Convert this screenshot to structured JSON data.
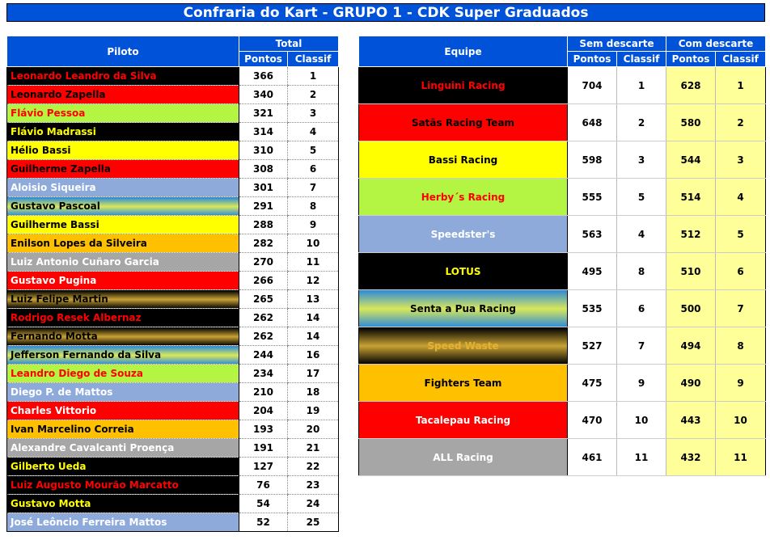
{
  "title": "Confraria do Kart - GRUPO 1 - CDK Super Graduados",
  "left": {
    "h_piloto": "Piloto",
    "h_total": "Total",
    "h_pontos": "Pontos",
    "h_classif": "Classif",
    "rows": [
      {
        "name": "Leonardo Leandro da Silva",
        "pontos": "366",
        "classif": "1",
        "bg": "black",
        "fg": "red"
      },
      {
        "name": "Leonardo Zapella",
        "pontos": "340",
        "classif": "2",
        "bg": "red",
        "fg": "black"
      },
      {
        "name": "Flávio Pessoa",
        "pontos": "321",
        "classif": "3",
        "bg": "lime",
        "fg": "red"
      },
      {
        "name": "Flávio Madrassi",
        "pontos": "314",
        "classif": "4",
        "bg": "black",
        "fg": "yellow"
      },
      {
        "name": "Hélio Bassi",
        "pontos": "310",
        "classif": "5",
        "bg": "yellow",
        "fg": "black"
      },
      {
        "name": "Guilherme Zapella",
        "pontos": "308",
        "classif": "6",
        "bg": "red",
        "fg": "black"
      },
      {
        "name": "Aloisio Siqueira",
        "pontos": "301",
        "classif": "7",
        "bg": "blue",
        "fg": "white"
      },
      {
        "name": "Gustavo Pascoal",
        "pontos": "291",
        "classif": "8",
        "bg": "senta",
        "fg": "black"
      },
      {
        "name": "Guilherme Bassi",
        "pontos": "288",
        "classif": "9",
        "bg": "yellow",
        "fg": "black"
      },
      {
        "name": "Enilson Lopes da Silveira",
        "pontos": "282",
        "classif": "10",
        "bg": "orange",
        "fg": "black"
      },
      {
        "name": "Luiz Antonio Cuñaro Garcia",
        "pontos": "270",
        "classif": "11",
        "bg": "gray",
        "fg": "white"
      },
      {
        "name": "Gustavo Pugina",
        "pontos": "266",
        "classif": "12",
        "bg": "red",
        "fg": "white"
      },
      {
        "name": "Luiz Felipe Martin",
        "pontos": "265",
        "classif": "13",
        "bg": "speed",
        "fg": "black"
      },
      {
        "name": "Rodrigo Resek Albernaz",
        "pontos": "262",
        "classif": "14",
        "bg": "black",
        "fg": "red"
      },
      {
        "name": "Fernando Motta",
        "pontos": "262",
        "classif": "14",
        "bg": "speed",
        "fg": "black"
      },
      {
        "name": "Jefferson Fernando da Silva",
        "pontos": "244",
        "classif": "16",
        "bg": "senta",
        "fg": "black"
      },
      {
        "name": "Leandro Diego de Souza",
        "pontos": "234",
        "classif": "17",
        "bg": "lime",
        "fg": "red"
      },
      {
        "name": "Diego P. de Mattos",
        "pontos": "210",
        "classif": "18",
        "bg": "blue",
        "fg": "white"
      },
      {
        "name": "Charles Vittorio",
        "pontos": "204",
        "classif": "19",
        "bg": "red",
        "fg": "white"
      },
      {
        "name": "Ivan Marcelino Correia",
        "pontos": "193",
        "classif": "20",
        "bg": "orange",
        "fg": "black"
      },
      {
        "name": "Alexandre Cavalcanti Proença",
        "pontos": "191",
        "classif": "21",
        "bg": "gray",
        "fg": "white"
      },
      {
        "name": "Gilberto Ueda",
        "pontos": "127",
        "classif": "22",
        "bg": "black",
        "fg": "yellow"
      },
      {
        "name": "Luiz Augusto Mourão Marcatto",
        "pontos": "76",
        "classif": "23",
        "bg": "black",
        "fg": "red"
      },
      {
        "name": "Gustavo Motta",
        "pontos": "54",
        "classif": "24",
        "bg": "black",
        "fg": "yellow"
      },
      {
        "name": "José Leôncio Ferreira Mattos",
        "pontos": "52",
        "classif": "25",
        "bg": "blue",
        "fg": "white"
      }
    ]
  },
  "right": {
    "h_equipe": "Equipe",
    "h_sem": "Sem descarte",
    "h_com": "Com descarte",
    "h_pontos": "Pontos",
    "h_classif": "Classif",
    "rows": [
      {
        "team": "Linguini Racing",
        "sem_pontos": "704",
        "sem_classif": "1",
        "com_pontos": "628",
        "com_classif": "1",
        "bg": "black",
        "fg": "red"
      },
      {
        "team": "Satãs Racing Team",
        "sem_pontos": "648",
        "sem_classif": "2",
        "com_pontos": "580",
        "com_classif": "2",
        "bg": "red",
        "fg": "black"
      },
      {
        "team": "Bassi Racing",
        "sem_pontos": "598",
        "sem_classif": "3",
        "com_pontos": "544",
        "com_classif": "3",
        "bg": "yellow",
        "fg": "black"
      },
      {
        "team": "Herby´s Racing",
        "sem_pontos": "555",
        "sem_classif": "5",
        "com_pontos": "514",
        "com_classif": "4",
        "bg": "lime",
        "fg": "red"
      },
      {
        "team": "Speedster's",
        "sem_pontos": "563",
        "sem_classif": "4",
        "com_pontos": "512",
        "com_classif": "5",
        "bg": "blue",
        "fg": "white"
      },
      {
        "team": "LOTUS",
        "sem_pontos": "495",
        "sem_classif": "8",
        "com_pontos": "510",
        "com_classif": "6",
        "bg": "black",
        "fg": "yellow"
      },
      {
        "team": "Senta a Pua Racing",
        "sem_pontos": "535",
        "sem_classif": "6",
        "com_pontos": "500",
        "com_classif": "7",
        "bg": "senta",
        "fg": "black"
      },
      {
        "team": "Speed Waste",
        "sem_pontos": "527",
        "sem_classif": "7",
        "com_pontos": "494",
        "com_classif": "8",
        "bg": "speed",
        "fg": "gold"
      },
      {
        "team": "Fighters Team",
        "sem_pontos": "475",
        "sem_classif": "9",
        "com_pontos": "490",
        "com_classif": "9",
        "bg": "orange",
        "fg": "black"
      },
      {
        "team": "Tacalepau Racing",
        "sem_pontos": "470",
        "sem_classif": "10",
        "com_pontos": "443",
        "com_classif": "10",
        "bg": "red",
        "fg": "white"
      },
      {
        "team": "ALL Racing",
        "sem_pontos": "461",
        "sem_classif": "11",
        "com_pontos": "432",
        "com_classif": "11",
        "bg": "gray",
        "fg": "white"
      }
    ]
  }
}
